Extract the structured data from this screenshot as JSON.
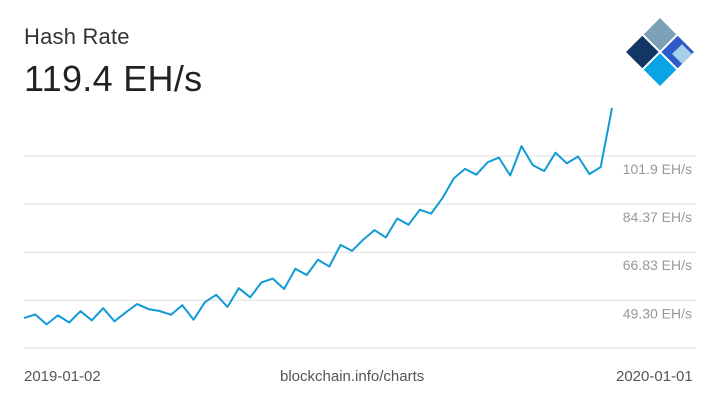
{
  "header": {
    "title": "Hash Rate",
    "current_value": "119.4 EH/s"
  },
  "footer": {
    "start_date": "2019-01-02",
    "source": "blockchain.info/charts",
    "end_date": "2020-01-01"
  },
  "logo": {
    "icon": "blockchain-logo-icon",
    "colors": [
      "#123765",
      "#7da0b7",
      "#2d5bc9",
      "#0aa3e6",
      "#a8cfe9"
    ]
  },
  "colors": {
    "line": "#119bd6",
    "grid": "#dddddd",
    "tick_text": "#999999"
  },
  "chart_data": {
    "type": "line",
    "title": "Hash Rate",
    "unit": "EH/s",
    "x_range": [
      "2019-01-02",
      "2020-01-01"
    ],
    "y_ticks": [
      49.3,
      66.83,
      84.37,
      101.9
    ],
    "y_tick_labels": [
      "49.30 EH/s",
      "66.83 EH/s",
      "84.37 EH/s",
      "101.9 EH/s"
    ],
    "ylim": [
      31.9,
      119.4
    ],
    "grid": true,
    "series": [
      {
        "name": "",
        "x": [
          "2019-01-02",
          "2019-01-09",
          "2019-01-16",
          "2019-01-23",
          "2019-01-30",
          "2019-02-06",
          "2019-02-13",
          "2019-02-20",
          "2019-02-27",
          "2019-03-06",
          "2019-03-13",
          "2019-03-20",
          "2019-03-27",
          "2019-04-03",
          "2019-04-10",
          "2019-04-17",
          "2019-04-24",
          "2019-05-01",
          "2019-05-08",
          "2019-05-15",
          "2019-05-22",
          "2019-05-29",
          "2019-06-05",
          "2019-06-12",
          "2019-06-19",
          "2019-06-26",
          "2019-07-03",
          "2019-07-10",
          "2019-07-17",
          "2019-07-24",
          "2019-07-31",
          "2019-08-07",
          "2019-08-14",
          "2019-08-21",
          "2019-08-28",
          "2019-09-04",
          "2019-09-11",
          "2019-09-18",
          "2019-09-25",
          "2019-10-02",
          "2019-10-09",
          "2019-10-16",
          "2019-10-23",
          "2019-10-30",
          "2019-11-06",
          "2019-11-13",
          "2019-11-20",
          "2019-11-27",
          "2019-12-04",
          "2019-12-11",
          "2019-12-18",
          "2019-12-25",
          "2020-01-01"
        ],
        "values": [
          42.8,
          44.1,
          40.5,
          43.8,
          41.2,
          45.3,
          42.0,
          46.4,
          41.6,
          44.9,
          47.9,
          46.1,
          45.4,
          44.0,
          47.5,
          42.2,
          48.6,
          51.3,
          46.9,
          53.7,
          50.4,
          55.8,
          57.2,
          53.4,
          60.8,
          58.5,
          64.1,
          61.6,
          69.5,
          67.3,
          71.4,
          74.9,
          72.2,
          79.1,
          76.8,
          82.3,
          80.9,
          86.5,
          93.7,
          97.2,
          95.1,
          99.6,
          101.3,
          94.8,
          105.5,
          98.6,
          96.4,
          103.1,
          99.2,
          101.7,
          95.3,
          97.9,
          119.4
        ]
      }
    ]
  }
}
